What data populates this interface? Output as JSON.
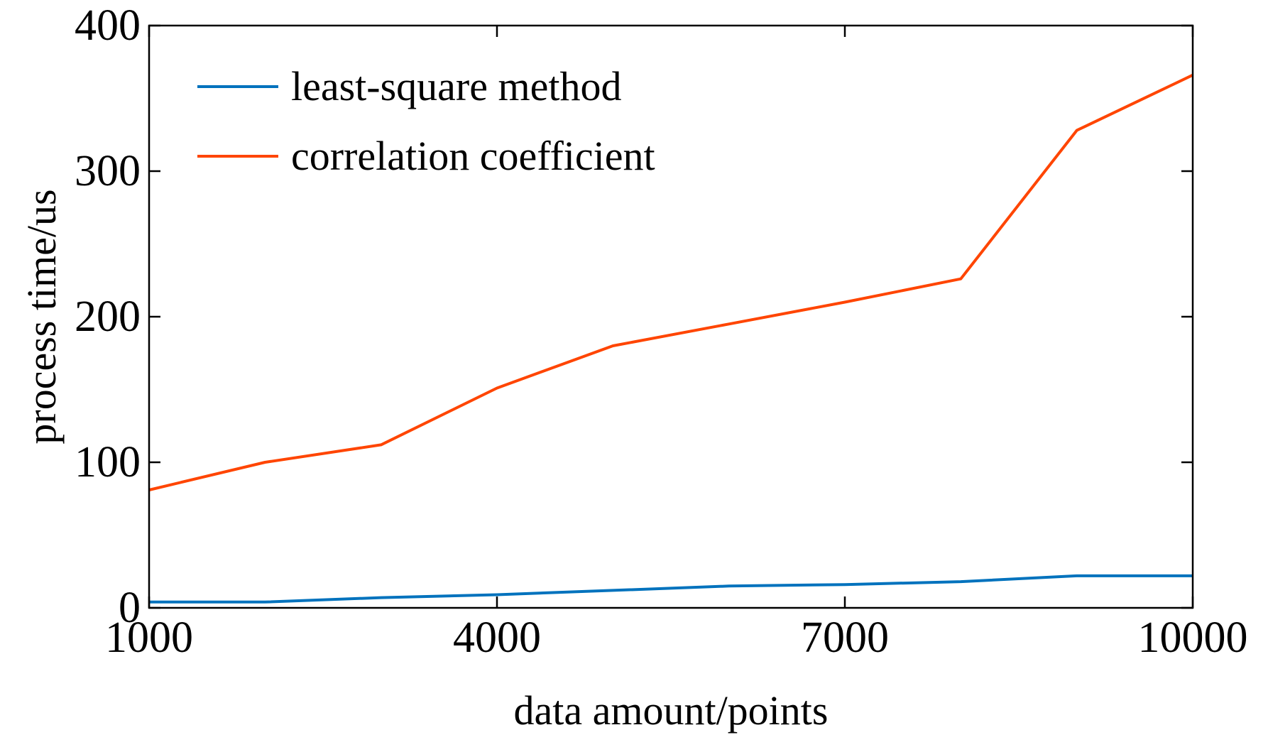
{
  "chart_data": {
    "type": "line",
    "title": "",
    "xlabel": "data amount/points",
    "ylabel": "process time/us",
    "xlim": [
      1000,
      10000
    ],
    "ylim": [
      0,
      400
    ],
    "xticks": [
      1000,
      4000,
      7000,
      10000
    ],
    "yticks": [
      0,
      100,
      200,
      300,
      400
    ],
    "xtick_labels": [
      "1000",
      "4000",
      "7000",
      "10000"
    ],
    "ytick_labels": [
      "0",
      "100",
      "200",
      "300",
      "400"
    ],
    "grid": false,
    "legend_position": "top-left",
    "x": [
      1000,
      2000,
      3000,
      4000,
      5000,
      6000,
      7000,
      8000,
      9000,
      10000
    ],
    "series": [
      {
        "name": "least-square method",
        "color": "#0072BD",
        "values": [
          4,
          4,
          7,
          9,
          12,
          15,
          16,
          18,
          22,
          22
        ]
      },
      {
        "name": "correlation coefficient",
        "color": "#FF4500",
        "values": [
          81,
          100,
          112,
          151,
          180,
          195,
          210,
          226,
          328,
          366
        ]
      }
    ]
  }
}
